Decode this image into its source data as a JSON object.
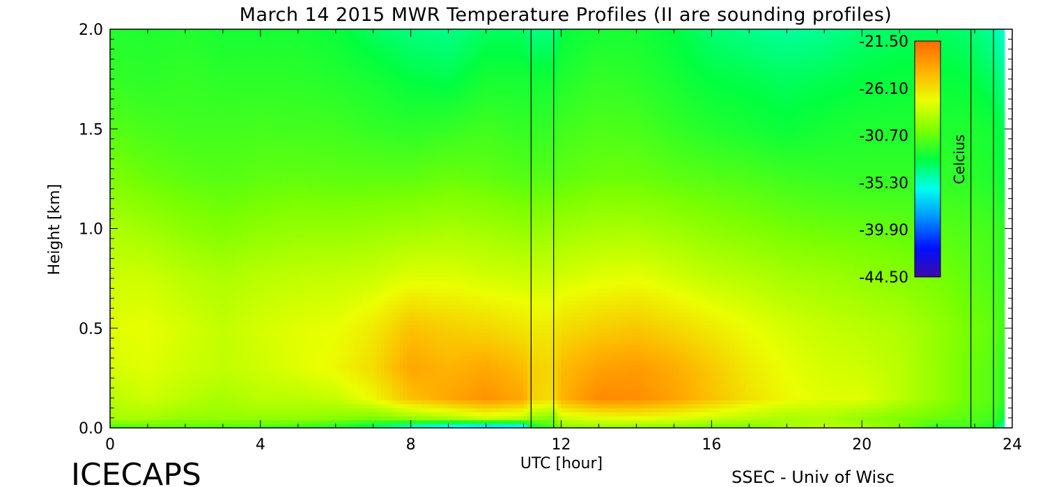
{
  "chart_data": {
    "type": "heatmap",
    "title": "March 14 2015 MWR Temperature Profiles (II are sounding profiles)",
    "xlabel": "UTC [hour]",
    "ylabel": "Height [km]",
    "xlim": [
      0,
      24
    ],
    "ylim": [
      0,
      2.0
    ],
    "x_ticks": [
      "0",
      "4",
      "8",
      "12",
      "16",
      "20",
      "24"
    ],
    "y_ticks": [
      "0.0",
      "0.5",
      "1.0",
      "1.5",
      "2.0"
    ],
    "x_tick_values": [
      0,
      4,
      8,
      12,
      16,
      20,
      24
    ],
    "y_tick_values": [
      0,
      0.5,
      1.0,
      1.5,
      2.0
    ],
    "sounding_times_utc": [
      11.2,
      11.8,
      22.9,
      23.5
    ],
    "colorbar": {
      "label": "Celcius",
      "ticks": [
        "-21.50",
        "-26.10",
        "-30.70",
        "-35.30",
        "-39.90",
        "-44.50"
      ],
      "min": -44.5,
      "max": -21.5,
      "colors": [
        "#3d0aa8",
        "#0010ff",
        "#0090ff",
        "#00ffee",
        "#00ff40",
        "#7cff00",
        "#eaff00",
        "#ffb000",
        "#ff6a00"
      ]
    },
    "temperature_field": {
      "times_utc": [
        0,
        1,
        2,
        3,
        4,
        5,
        6,
        7,
        8,
        9,
        10,
        11,
        11.2,
        11.8,
        12,
        13,
        14,
        15,
        16,
        17,
        18,
        19,
        20,
        21,
        22,
        22.9,
        23.5,
        23.8
      ],
      "heights_km": [
        0.0,
        0.05,
        0.15,
        0.3,
        0.5,
        0.75,
        1.0,
        1.25,
        1.5,
        1.75,
        2.0
      ],
      "values_c": [
        [
          -31.5,
          -31.0,
          -31.0,
          -31.2,
          -31.3,
          -31.8,
          -32.5,
          -34.0,
          -36.0,
          -37.5,
          -38.5,
          -38.0,
          -33.5,
          -31.5,
          -30.0,
          -29.5,
          -29.8,
          -30.0,
          -30.5,
          -30.3,
          -29.0,
          -28.5,
          -29.0,
          -30.0,
          -32.0,
          -31.5,
          -32.5,
          -36.0
        ],
        [
          -29.0,
          -29.0,
          -29.5,
          -29.5,
          -29.5,
          -29.5,
          -29.8,
          -30.2,
          -29.5,
          -29.0,
          -28.0,
          -28.5,
          -29.5,
          -30.0,
          -28.0,
          -27.5,
          -27.2,
          -27.5,
          -28.0,
          -28.5,
          -29.0,
          -28.8,
          -29.5,
          -30.0,
          -30.5,
          -31.0,
          -31.5,
          -33.0
        ],
        [
          -28.5,
          -28.0,
          -28.5,
          -29.0,
          -28.5,
          -28.5,
          -28.2,
          -27.0,
          -25.0,
          -24.0,
          -23.2,
          -24.0,
          -25.5,
          -26.0,
          -24.5,
          -22.8,
          -23.0,
          -23.8,
          -25.0,
          -26.2,
          -27.0,
          -27.5,
          -27.5,
          -28.5,
          -29.5,
          -30.5,
          -31.0,
          -32.0
        ],
        [
          -27.8,
          -27.5,
          -28.0,
          -28.3,
          -28.0,
          -27.5,
          -27.0,
          -26.0,
          -24.0,
          -24.5,
          -24.0,
          -24.8,
          -25.5,
          -25.8,
          -24.8,
          -23.8,
          -23.5,
          -24.2,
          -25.3,
          -26.5,
          -27.3,
          -27.8,
          -28.0,
          -28.5,
          -29.5,
          -30.5,
          -31.0,
          -32.0
        ],
        [
          -27.5,
          -27.3,
          -27.8,
          -28.3,
          -27.8,
          -27.5,
          -27.3,
          -26.5,
          -25.0,
          -25.5,
          -25.8,
          -26.3,
          -26.5,
          -26.5,
          -26.0,
          -25.5,
          -25.2,
          -25.8,
          -26.5,
          -27.2,
          -27.8,
          -28.2,
          -28.5,
          -28.8,
          -29.5,
          -30.3,
          -30.8,
          -31.5
        ],
        [
          -28.0,
          -28.0,
          -28.5,
          -28.8,
          -28.5,
          -28.3,
          -28.2,
          -28.0,
          -27.5,
          -27.5,
          -27.8,
          -28.0,
          -28.0,
          -28.0,
          -27.8,
          -27.5,
          -27.3,
          -27.8,
          -28.3,
          -28.6,
          -29.0,
          -29.2,
          -29.5,
          -29.8,
          -30.2,
          -30.8,
          -31.2,
          -31.8
        ],
        [
          -28.8,
          -29.2,
          -29.7,
          -30.0,
          -29.7,
          -29.5,
          -29.5,
          -29.4,
          -29.2,
          -29.0,
          -29.2,
          -29.5,
          -29.5,
          -29.4,
          -29.3,
          -29.0,
          -29.0,
          -29.3,
          -29.7,
          -30.0,
          -30.3,
          -30.5,
          -30.6,
          -30.8,
          -31.0,
          -31.2,
          -31.5,
          -32.0
        ],
        [
          -30.0,
          -30.5,
          -30.8,
          -31.0,
          -30.8,
          -30.7,
          -30.8,
          -30.8,
          -30.8,
          -30.5,
          -30.7,
          -31.0,
          -31.0,
          -31.0,
          -30.8,
          -30.5,
          -30.5,
          -30.8,
          -31.0,
          -31.2,
          -31.5,
          -31.7,
          -31.8,
          -31.8,
          -31.8,
          -32.0,
          -32.3,
          -32.8
        ],
        [
          -31.0,
          -31.3,
          -31.5,
          -31.5,
          -31.4,
          -31.5,
          -31.5,
          -31.8,
          -32.0,
          -31.8,
          -31.5,
          -31.8,
          -31.8,
          -31.8,
          -31.5,
          -31.2,
          -31.3,
          -31.8,
          -32.2,
          -32.5,
          -32.8,
          -32.5,
          -32.3,
          -32.3,
          -32.3,
          -32.3,
          -32.6,
          -33.5
        ],
        [
          -31.8,
          -32.0,
          -31.8,
          -32.0,
          -32.0,
          -32.0,
          -32.2,
          -32.5,
          -33.0,
          -33.2,
          -32.5,
          -32.5,
          -32.6,
          -32.6,
          -32.3,
          -31.8,
          -32.0,
          -32.5,
          -33.0,
          -33.2,
          -33.5,
          -33.3,
          -33.0,
          -32.8,
          -32.8,
          -33.0,
          -33.5,
          -34.5
        ],
        [
          -32.2,
          -32.3,
          -32.2,
          -32.5,
          -32.5,
          -32.5,
          -32.8,
          -33.5,
          -34.0,
          -34.2,
          -33.5,
          -33.5,
          -34.0,
          -34.0,
          -33.0,
          -32.5,
          -32.5,
          -33.0,
          -33.8,
          -34.2,
          -34.5,
          -34.3,
          -33.8,
          -33.5,
          -33.5,
          -33.8,
          -34.5,
          -35.5
        ]
      ]
    }
  },
  "footer": {
    "left": "ICECAPS",
    "right": "SSEC - Univ of Wisc"
  }
}
